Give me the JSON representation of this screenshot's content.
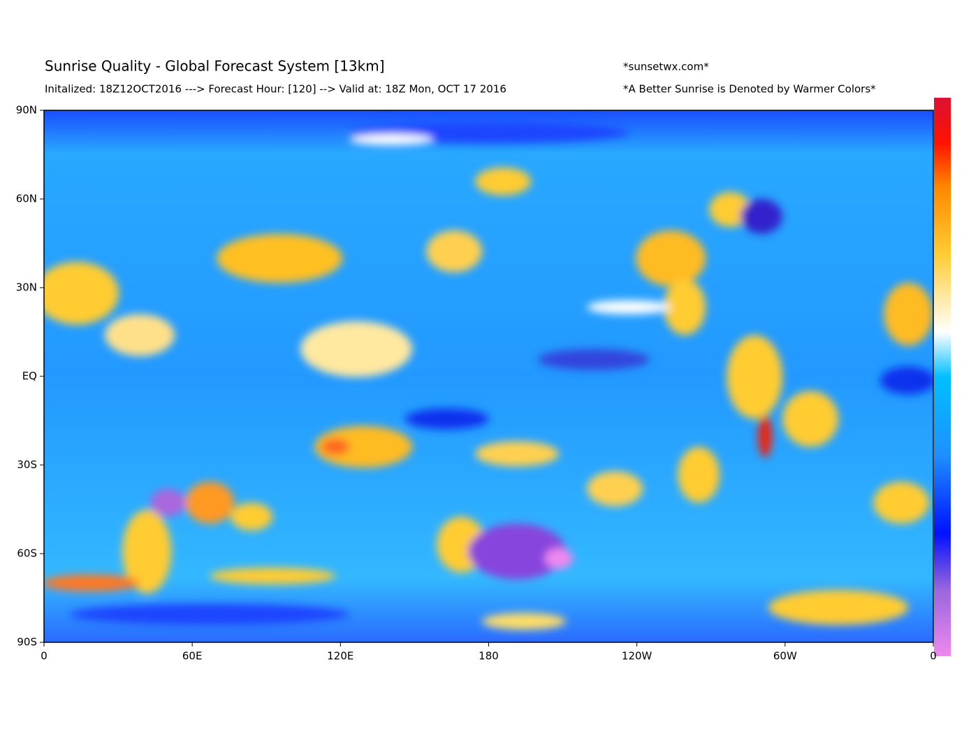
{
  "header": {
    "title": "Sunrise Quality - Global Forecast System [13km]",
    "subtitle": "Initalized: 18Z12OCT2016 ---> Forecast Hour: [120] --> Valid at: 18Z Mon, OCT 17 2016",
    "site": "*sunsetwx.com*",
    "note": "*A Better Sunrise is Denoted by Warmer Colors*"
  },
  "map": {
    "lat_labels": [
      "90N",
      "60N",
      "30N",
      "EQ",
      "30S",
      "60S",
      "90S"
    ],
    "lon_labels": [
      "0",
      "60E",
      "120E",
      "180",
      "120W",
      "60W",
      "0"
    ]
  }
}
